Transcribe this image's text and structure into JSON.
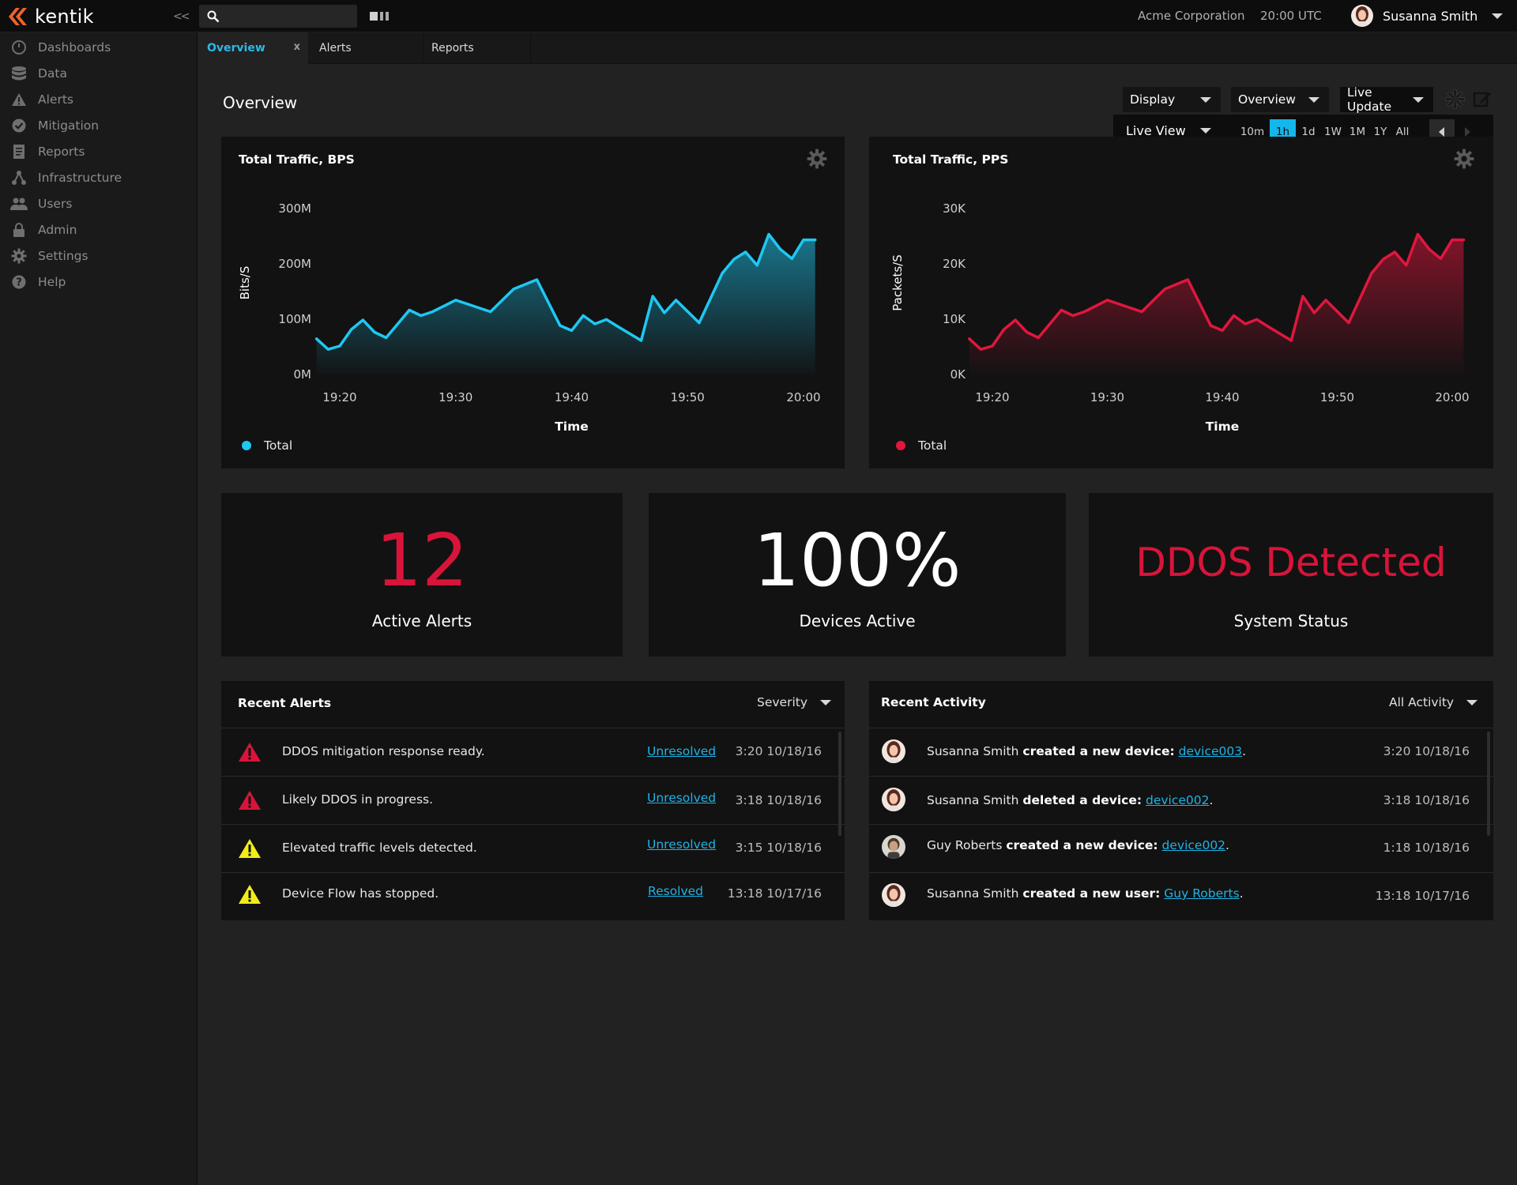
{
  "app": {
    "logo_text": "kentik",
    "collapse_label": "<<",
    "organization": "Acme Corporation",
    "clock": "20:00 UTC",
    "user_name": "Susanna Smith"
  },
  "sidebar": {
    "items": [
      {
        "label": "Dashboards",
        "icon": "gauge-icon"
      },
      {
        "label": "Data",
        "icon": "database-icon"
      },
      {
        "label": "Alerts",
        "icon": "warning-icon"
      },
      {
        "label": "Mitigation",
        "icon": "check-circle-icon"
      },
      {
        "label": "Reports",
        "icon": "report-icon"
      },
      {
        "label": "Infrastructure",
        "icon": "network-icon"
      },
      {
        "label": "Users",
        "icon": "users-icon"
      },
      {
        "label": "Admin",
        "icon": "lock-icon"
      },
      {
        "label": "Settings",
        "icon": "gear-icon"
      },
      {
        "label": "Help",
        "icon": "help-icon"
      }
    ]
  },
  "tabs": [
    {
      "label": "Overview",
      "active": true,
      "close": "x"
    },
    {
      "label": "Alerts",
      "active": false
    },
    {
      "label": "Reports",
      "active": false
    }
  ],
  "page": {
    "title": "Overview",
    "display_dropdown": "Display",
    "view_dropdown": "Overview",
    "update_dropdown": "Live Update",
    "live_view": "Live View",
    "ranges": [
      "10m",
      "1h",
      "1d",
      "1W",
      "1M",
      "1Y",
      "All"
    ],
    "active_range": "1h"
  },
  "chart_data": [
    {
      "type": "area",
      "title": "Total Traffic, BPS",
      "xlabel": "Time",
      "ylabel": "Bits/S",
      "yticks": [
        "300M",
        "200M",
        "100M",
        "0M"
      ],
      "xticks": [
        "19:20",
        "19:30",
        "19:40",
        "19:50",
        "20:00"
      ],
      "ylim": [
        0,
        300
      ],
      "y_unit": "M",
      "legend": "Total",
      "color": "#1ec8f2",
      "x": [
        "19:18",
        "19:19",
        "19:20",
        "19:21",
        "19:22",
        "19:23",
        "19:24",
        "19:26",
        "19:27",
        "19:28",
        "19:30",
        "19:33",
        "19:35",
        "19:37",
        "19:39",
        "19:40",
        "19:41",
        "19:42",
        "19:43",
        "19:44",
        "19:46",
        "19:47",
        "19:48",
        "19:49",
        "19:51",
        "19:53",
        "19:54",
        "19:55",
        "19:56",
        "19:57",
        "19:58",
        "19:59",
        "20:00",
        "20:01"
      ],
      "values": [
        63,
        44,
        50,
        80,
        97,
        75,
        65,
        115,
        105,
        112,
        133,
        112,
        153,
        170,
        87,
        78,
        105,
        90,
        98,
        85,
        60,
        140,
        110,
        133,
        92,
        182,
        207,
        220,
        196,
        252,
        225,
        208,
        242,
        242
      ]
    },
    {
      "type": "area",
      "title": "Total Traffic, PPS",
      "xlabel": "Time",
      "ylabel": "Packets/S",
      "yticks": [
        "30K",
        "20K",
        "10K",
        "0K"
      ],
      "xticks": [
        "19:20",
        "19:30",
        "19:40",
        "19:50",
        "20:00"
      ],
      "ylim": [
        0,
        30
      ],
      "y_unit": "K",
      "legend": "Total",
      "color": "#e0173e",
      "x": [
        "19:18",
        "19:19",
        "19:20",
        "19:21",
        "19:22",
        "19:23",
        "19:24",
        "19:26",
        "19:27",
        "19:28",
        "19:30",
        "19:33",
        "19:35",
        "19:37",
        "19:39",
        "19:40",
        "19:41",
        "19:42",
        "19:43",
        "19:44",
        "19:46",
        "19:47",
        "19:48",
        "19:49",
        "19:51",
        "19:53",
        "19:54",
        "19:55",
        "19:56",
        "19:57",
        "19:58",
        "19:59",
        "20:00",
        "20:01"
      ],
      "values": [
        6.3,
        4.4,
        5.0,
        8.0,
        9.7,
        7.5,
        6.5,
        11.5,
        10.5,
        11.2,
        13.3,
        11.2,
        15.3,
        17.0,
        8.7,
        7.8,
        10.5,
        9.0,
        9.8,
        8.5,
        6.0,
        14.0,
        11.0,
        13.3,
        9.2,
        18.2,
        20.7,
        22.0,
        19.6,
        25.2,
        22.5,
        20.8,
        24.2,
        24.2
      ]
    }
  ],
  "stats": [
    {
      "value": "12",
      "label": "Active Alerts",
      "color": "#d8143a"
    },
    {
      "value": "100%",
      "label": "Devices Active",
      "color": "#ffffff"
    },
    {
      "value": "DDOS Detected",
      "label": "System Status",
      "color": "#d8143a"
    }
  ],
  "recent_alerts": {
    "title": "Recent Alerts",
    "filter": "Severity",
    "rows": [
      {
        "severity": "critical",
        "message": "DDOS mitigation response ready.",
        "status": "Unresolved",
        "time": "3:20 10/18/16"
      },
      {
        "severity": "critical",
        "message": "Likely DDOS in progress.",
        "status": "Unresolved",
        "time": "3:18 10/18/16"
      },
      {
        "severity": "warning",
        "message": "Elevated traffic levels detected.",
        "status": "Unresolved",
        "time": "3:15 10/18/16"
      },
      {
        "severity": "warning",
        "message": "Device Flow has stopped.",
        "status": "Resolved",
        "time": "13:18 10/17/16"
      }
    ]
  },
  "recent_activity": {
    "title": "Recent Activity",
    "filter": "All Activity",
    "rows": [
      {
        "actor": "Susanna Smith",
        "action": "created a new device:",
        "target": "device003",
        "end": ".",
        "time": "3:20 10/18/16"
      },
      {
        "actor": "Susanna Smith",
        "action": "deleted a device:",
        "target": "device002",
        "end": ".",
        "time": "3:18 10/18/16"
      },
      {
        "actor": "Guy Roberts",
        "action": "created a new device:",
        "target": "device002",
        "end": ".",
        "time": "1:18 10/18/16"
      },
      {
        "actor": "Susanna Smith",
        "action": "created a new user:",
        "target": "Guy Roberts",
        "end": ".",
        "time": "13:18 10/17/16"
      }
    ]
  },
  "colors": {
    "accent": "#13b7ea",
    "danger": "#d8143a",
    "warning": "#f2ec1a"
  }
}
